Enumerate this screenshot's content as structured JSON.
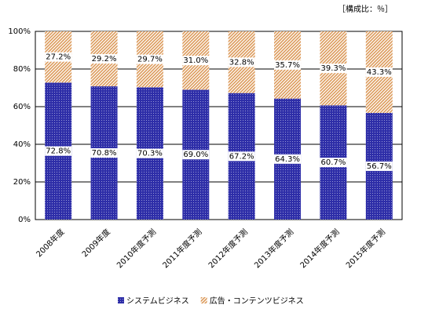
{
  "chart_data": {
    "type": "stacked-bar",
    "unit_note": "［構成比：％］",
    "categories": [
      "2008年度",
      "2009年度",
      "2010年度予測",
      "2011年度予測",
      "2012年度予測",
      "2013年度予測",
      "2014年度予測",
      "2015年度予測"
    ],
    "series": [
      {
        "name": "システムビジネス",
        "color": "#2e2ea8",
        "values": [
          72.8,
          70.8,
          70.3,
          69.0,
          67.2,
          64.3,
          60.7,
          56.7
        ],
        "value_labels": [
          "72.8%",
          "70.8%",
          "70.3%",
          "69.0%",
          "67.2%",
          "64.3%",
          "60.7%",
          "56.7%"
        ]
      },
      {
        "name": "広告・コンテンツビジネス",
        "color": "#dc9a5a",
        "values": [
          27.2,
          29.2,
          29.7,
          31.0,
          32.8,
          35.7,
          39.3,
          43.3
        ],
        "value_labels": [
          "27.2%",
          "29.2%",
          "29.7%",
          "31.0%",
          "32.8%",
          "35.7%",
          "39.3%",
          "43.3%"
        ]
      }
    ],
    "ylim": [
      0,
      100
    ],
    "yticks": [
      {
        "value": 0,
        "label": "0%"
      },
      {
        "value": 20,
        "label": "20%"
      },
      {
        "value": 40,
        "label": "40%"
      },
      {
        "value": 60,
        "label": "60%"
      },
      {
        "value": 80,
        "label": "80%"
      },
      {
        "value": 100,
        "label": "100%"
      }
    ],
    "grid": true,
    "legend": "bottom"
  }
}
